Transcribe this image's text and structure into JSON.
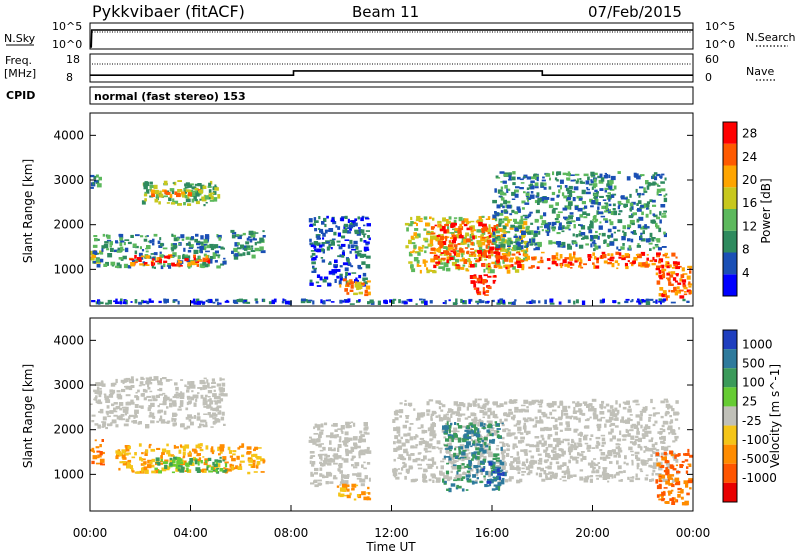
{
  "header": {
    "station": "Pykkvibaer (fitACF)",
    "beam": "Beam 11",
    "date": "07/Feb/2015"
  },
  "noise_panel": {
    "left_label": "N.Sky",
    "right_label": "N.Search",
    "left_ticks": [
      "10^5",
      "10^0"
    ],
    "right_ticks": [
      "10^5",
      "10^0"
    ]
  },
  "freq_panel": {
    "left_label_line1": "Freq.",
    "left_label_line2": "[MHz]",
    "left_ticks": [
      "18",
      "8"
    ],
    "right_label": "Nave",
    "right_ticks": [
      "60",
      "0"
    ],
    "freq_steps": [
      {
        "t": 0,
        "f": 10
      },
      {
        "t": 8.1,
        "f": 10
      },
      {
        "t": 8.1,
        "f": 11.8
      },
      {
        "t": 18.0,
        "f": 11.8
      },
      {
        "t": 18.0,
        "f": 10
      },
      {
        "t": 24,
        "f": 10
      }
    ]
  },
  "cpid": {
    "label": "CPID",
    "mode": "normal (fast stereo) 153"
  },
  "colors": {
    "power": [
      "#0000ff",
      "#1a4fb5",
      "#2e8a5e",
      "#5cb85c",
      "#c8c81e",
      "#ffa500",
      "#ff5a00",
      "#ff0000"
    ],
    "velocity_pos": [
      "#1f3fbf",
      "#2e7a9c",
      "#3b9a5a",
      "#66cc33"
    ],
    "velocity_ground": "#c0c0b8",
    "velocity_neg": [
      "#f5c518",
      "#ff8c00",
      "#ff5500",
      "#e80000"
    ]
  },
  "chart_data": [
    {
      "type": "heatmap",
      "ylabel": "Slant Range [km]",
      "ylim": [
        180,
        4500
      ],
      "yticks": [
        "4000",
        "3000",
        "2000",
        "1000"
      ],
      "xlim": [
        0,
        24
      ],
      "colorbar": {
        "label": "Power [dB]",
        "ticks": [
          "28",
          "24",
          "20",
          "16",
          "12",
          "8",
          "4"
        ],
        "range": [
          0,
          30
        ]
      },
      "regions": [
        {
          "t0": 0.0,
          "t1": 0.6,
          "r0": 1100,
          "r1": 1500,
          "level": 4
        },
        {
          "t0": 0.0,
          "t1": 0.5,
          "r0": 2800,
          "r1": 3200,
          "level": 2
        },
        {
          "t0": 2.0,
          "t1": 5.2,
          "r0": 2400,
          "r1": 3000,
          "level": 3
        },
        {
          "t0": 2.4,
          "t1": 4.8,
          "r0": 2600,
          "r1": 2800,
          "level": 5
        },
        {
          "t0": 0.1,
          "t1": 5.5,
          "r0": 1000,
          "r1": 1800,
          "level": 2
        },
        {
          "t0": 1.5,
          "t1": 5.0,
          "r0": 1050,
          "r1": 1350,
          "level": 6
        },
        {
          "t0": 5.5,
          "t1": 7.0,
          "r0": 1200,
          "r1": 1900,
          "level": 2
        },
        {
          "t0": 8.7,
          "t1": 11.2,
          "r0": 600,
          "r1": 2200,
          "level": 1
        },
        {
          "t0": 9.9,
          "t1": 11.2,
          "r0": 400,
          "r1": 800,
          "level": 5
        },
        {
          "t0": 12.5,
          "t1": 17.5,
          "r0": 900,
          "r1": 2200,
          "level": 4
        },
        {
          "t0": 13.5,
          "t1": 16.5,
          "r0": 1000,
          "r1": 2100,
          "level": 6
        },
        {
          "t0": 15.0,
          "t1": 16.2,
          "r0": 400,
          "r1": 900,
          "level": 7
        },
        {
          "t0": 16.0,
          "t1": 23.5,
          "r0": 1000,
          "r1": 1400,
          "level": 6
        },
        {
          "t0": 16.0,
          "t1": 23.0,
          "r0": 1400,
          "r1": 3200,
          "level": 2
        },
        {
          "t0": 22.5,
          "t1": 24.0,
          "r0": 300,
          "r1": 1200,
          "level": 6
        },
        {
          "t0": 0.0,
          "t1": 24.0,
          "r0": 200,
          "r1": 350,
          "level": 1
        }
      ]
    },
    {
      "type": "heatmap",
      "ylabel": "Slant Range [km]",
      "xlabel": "Time UT",
      "ylim": [
        180,
        4500
      ],
      "yticks": [
        "4000",
        "3000",
        "2000",
        "1000"
      ],
      "xlim": [
        0,
        24
      ],
      "xticks": [
        "00:00",
        "04:00",
        "08:00",
        "12:00",
        "16:00",
        "20:00",
        "00:00"
      ],
      "colorbar": {
        "label": "Velocity [m s^-1]",
        "ticks": [
          "1000",
          "500",
          "100",
          "25",
          "-25",
          "-100",
          "-500",
          "-1000"
        ]
      },
      "regions": [
        {
          "t0": 0.0,
          "t1": 0.6,
          "r0": 1200,
          "r1": 1800,
          "kind": "neg2"
        },
        {
          "t0": 1.0,
          "t1": 7.0,
          "r0": 1000,
          "r1": 1700,
          "kind": "neg1"
        },
        {
          "t0": 2.5,
          "t1": 5.5,
          "r0": 1000,
          "r1": 1400,
          "kind": "pos3"
        },
        {
          "t0": 0.0,
          "t1": 5.5,
          "r0": 2000,
          "r1": 3200,
          "kind": "ground"
        },
        {
          "t0": 8.7,
          "t1": 11.2,
          "r0": 700,
          "r1": 2200,
          "kind": "ground"
        },
        {
          "t0": 9.8,
          "t1": 11.2,
          "r0": 400,
          "r1": 800,
          "kind": "neg1"
        },
        {
          "t0": 12.0,
          "t1": 23.5,
          "r0": 800,
          "r1": 2700,
          "kind": "ground"
        },
        {
          "t0": 14.0,
          "t1": 16.5,
          "r0": 600,
          "r1": 2200,
          "kind": "pos2"
        },
        {
          "t0": 15.6,
          "t1": 16.6,
          "r0": 700,
          "r1": 1300,
          "kind": "pos1"
        },
        {
          "t0": 22.5,
          "t1": 24.0,
          "r0": 300,
          "r1": 1600,
          "kind": "neg2"
        }
      ]
    }
  ]
}
